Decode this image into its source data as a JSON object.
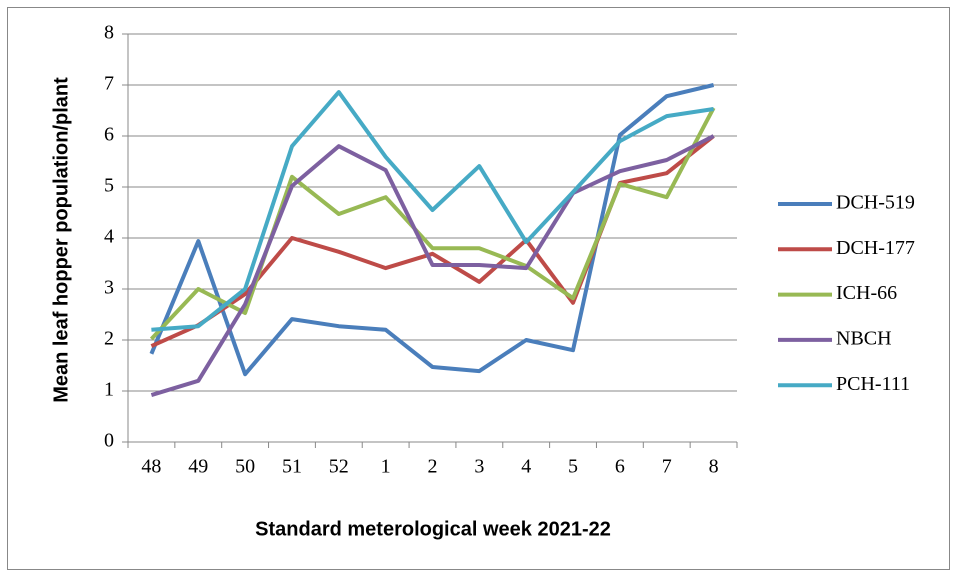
{
  "chart_data": {
    "type": "line",
    "x_label": "Standard meterological week 2021-22",
    "y_label": "Mean leaf hopper population/plant",
    "categories": [
      "48",
      "49",
      "50",
      "51",
      "52",
      "1",
      "2",
      "3",
      "4",
      "5",
      "6",
      "7",
      "8"
    ],
    "series": [
      {
        "name": "DCH-519",
        "color": "#4a7ebb",
        "values": [
          1.73,
          3.94,
          1.33,
          2.41,
          2.27,
          2.2,
          1.47,
          1.39,
          2.0,
          1.8,
          6.02,
          6.78,
          7.0
        ]
      },
      {
        "name": "DCH-177",
        "color": "#be4b48",
        "values": [
          1.88,
          2.29,
          2.9,
          4.0,
          3.73,
          3.41,
          3.69,
          3.14,
          3.96,
          2.73,
          5.08,
          5.27,
          6.0
        ]
      },
      {
        "name": "ICH-66",
        "color": "#98b954",
        "values": [
          2.02,
          3.0,
          2.53,
          5.2,
          4.47,
          4.8,
          3.8,
          3.8,
          3.45,
          2.82,
          5.06,
          4.8,
          6.55
        ]
      },
      {
        "name": "NBCH",
        "color": "#7d60a0",
        "values": [
          0.92,
          1.2,
          2.7,
          5.02,
          5.8,
          5.33,
          3.47,
          3.47,
          3.41,
          4.88,
          5.31,
          5.53,
          6.0
        ]
      },
      {
        "name": "PCH-111",
        "color": "#46aac5",
        "values": [
          2.2,
          2.27,
          3.0,
          5.8,
          6.86,
          5.59,
          4.55,
          5.41,
          3.92,
          4.9,
          5.9,
          6.39,
          6.53
        ]
      }
    ],
    "ylim": [
      0,
      8
    ],
    "yticks": [
      0,
      1,
      2,
      3,
      4,
      5,
      6,
      7,
      8
    ],
    "grid": true,
    "legend": "right"
  }
}
